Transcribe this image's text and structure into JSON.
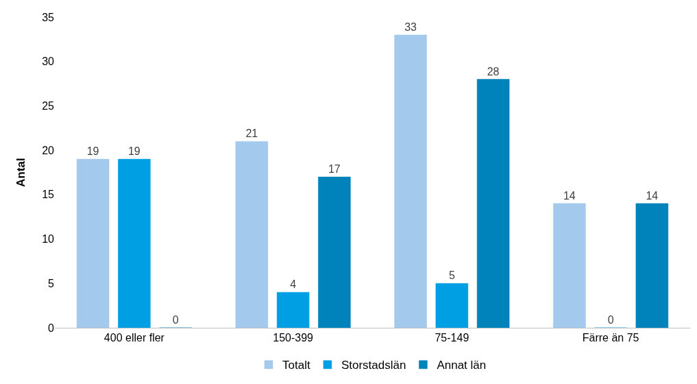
{
  "chart_data": {
    "type": "bar",
    "ylabel": "Antal",
    "categories": [
      "400 eller fler",
      "150-399",
      "75-149",
      "Färre än 75"
    ],
    "series": [
      {
        "name": "Totalt",
        "color": "#a3c9ec",
        "values": [
          19,
          21,
          33,
          14
        ]
      },
      {
        "name": "Storstadslän",
        "color": "#009fe3",
        "values": [
          19,
          4,
          5,
          0
        ]
      },
      {
        "name": "Annat län",
        "color": "#0082ba",
        "values": [
          0,
          17,
          28,
          14
        ]
      }
    ],
    "ylim": [
      0,
      35
    ],
    "yticks": [
      0,
      5,
      10,
      15,
      20,
      25,
      30,
      35
    ],
    "grid": false,
    "legend": "bottom",
    "data_labels": true
  }
}
